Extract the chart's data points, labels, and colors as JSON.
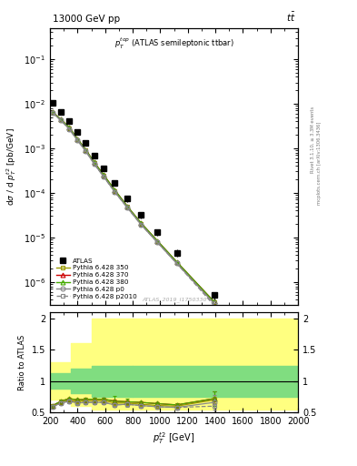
{
  "title_left": "13000 GeV pp",
  "title_right": "tt",
  "subplot_label": "$p_T^{top}$ (ATLAS semileptonic ttbar)",
  "watermark": "ATLAS_2019_I1750330",
  "right_label1": "Rivet 3.1.10, ≥ 3.3M events",
  "right_label2": "mcplots.cern.ch [arXiv:1306.3436]",
  "ylabel_main": "dσ / d p$_T^{t2}$ [pb/GeV]",
  "ylabel_ratio": "Ratio to ATLAS",
  "xlabel": "$p_T^{t2}$ [GeV]",
  "atlas_x": [
    220,
    280,
    340,
    400,
    460,
    520,
    590,
    670,
    760,
    860,
    980,
    1120,
    1390
  ],
  "atlas_y": [
    0.0105,
    0.0065,
    0.004,
    0.0023,
    0.0013,
    0.00068,
    0.00035,
    0.00017,
    7.5e-05,
    3.2e-05,
    1.3e-05,
    4.5e-06,
    5e-07
  ],
  "atlas_yerr": [
    0.0015,
    0.0008,
    0.0005,
    0.0003,
    0.00018,
    9e-05,
    5e-05,
    2.5e-05,
    1.2e-05,
    5e-06,
    2e-06,
    8e-07,
    1e-07
  ],
  "py350_x": [
    220,
    280,
    340,
    400,
    460,
    520,
    590,
    670,
    760,
    860,
    980,
    1120,
    1390
  ],
  "py350_y": [
    0.0063,
    0.0043,
    0.0028,
    0.00155,
    0.00089,
    0.00047,
    0.00024,
    0.00011,
    4.9e-05,
    2e-05,
    7.9e-06,
    2.7e-06,
    3.5e-07
  ],
  "py370_x": [
    220,
    280,
    340,
    400,
    460,
    520,
    590,
    670,
    760,
    860,
    980,
    1120,
    1390
  ],
  "py370_y": [
    0.0064,
    0.0044,
    0.0029,
    0.0016,
    0.00092,
    0.000485,
    0.00025,
    0.000115,
    5e-05,
    2.1e-05,
    8.3e-06,
    2.8e-06,
    3.6e-07
  ],
  "py380_x": [
    220,
    280,
    340,
    400,
    460,
    520,
    590,
    670,
    760,
    860,
    980,
    1120,
    1390
  ],
  "py380_y": [
    0.0064,
    0.0044,
    0.0029,
    0.0016,
    0.00092,
    0.000485,
    0.00025,
    0.000115,
    5e-05,
    2.1e-05,
    8.3e-06,
    2.8e-06,
    3.6e-07
  ],
  "pyp0_x": [
    220,
    280,
    340,
    400,
    460,
    520,
    590,
    670,
    760,
    860,
    980,
    1120,
    1390
  ],
  "pyp0_y": [
    0.0062,
    0.0042,
    0.0027,
    0.0015,
    0.00086,
    0.00045,
    0.00023,
    0.000105,
    4.7e-05,
    1.95e-05,
    7.7e-06,
    2.6e-06,
    3.3e-07
  ],
  "pyp2010_x": [
    220,
    280,
    340,
    400,
    460,
    520,
    590,
    670,
    760,
    860,
    980,
    1120,
    1390
  ],
  "pyp2010_y": [
    0.0062,
    0.0042,
    0.0027,
    0.0015,
    0.00086,
    0.00045,
    0.00023,
    0.000105,
    4.7e-05,
    1.95e-05,
    7.7e-06,
    2.6e-06,
    3e-07
  ],
  "ratio_x": [
    220,
    280,
    340,
    400,
    460,
    520,
    590,
    670,
    760,
    860,
    980,
    1120,
    1390
  ],
  "ratio_py350": [
    0.6,
    0.66,
    0.7,
    0.67,
    0.69,
    0.69,
    0.69,
    0.65,
    0.65,
    0.63,
    0.61,
    0.6,
    0.7
  ],
  "ratio_py370": [
    0.61,
    0.68,
    0.72,
    0.7,
    0.71,
    0.71,
    0.71,
    0.68,
    0.67,
    0.66,
    0.64,
    0.62,
    0.72
  ],
  "ratio_py380": [
    0.61,
    0.68,
    0.72,
    0.7,
    0.71,
    0.71,
    0.71,
    0.68,
    0.67,
    0.66,
    0.64,
    0.62,
    0.72
  ],
  "ratio_pyp0": [
    0.59,
    0.65,
    0.68,
    0.65,
    0.66,
    0.66,
    0.66,
    0.62,
    0.63,
    0.61,
    0.59,
    0.58,
    0.66
  ],
  "ratio_pyp2010": [
    0.59,
    0.65,
    0.68,
    0.65,
    0.66,
    0.66,
    0.66,
    0.62,
    0.63,
    0.61,
    0.59,
    0.58,
    0.6
  ],
  "ratio_err_py350": [
    0.02,
    0.02,
    0.02,
    0.02,
    0.02,
    0.02,
    0.02,
    0.02,
    0.02,
    0.02,
    0.02,
    0.02,
    0.05
  ],
  "ratio_err_py370": [
    0.02,
    0.02,
    0.02,
    0.02,
    0.02,
    0.02,
    0.02,
    0.02,
    0.02,
    0.02,
    0.02,
    0.02,
    0.12
  ],
  "ratio_err_py380": [
    0.02,
    0.02,
    0.02,
    0.02,
    0.02,
    0.02,
    0.02,
    0.08,
    0.05,
    0.02,
    0.02,
    0.02,
    0.12
  ],
  "ratio_err_pyp0": [
    0.02,
    0.02,
    0.02,
    0.02,
    0.02,
    0.02,
    0.02,
    0.03,
    0.04,
    0.02,
    0.02,
    0.02,
    0.12
  ],
  "ratio_err_pyp2010": [
    0.02,
    0.02,
    0.02,
    0.02,
    0.02,
    0.02,
    0.02,
    0.02,
    0.02,
    0.02,
    0.02,
    0.02,
    0.1
  ],
  "band_x_edges": [
    200,
    350,
    500,
    800,
    2000
  ],
  "band_green_lo": [
    0.88,
    0.8,
    0.75,
    0.75
  ],
  "band_green_hi": [
    1.12,
    1.2,
    1.25,
    1.25
  ],
  "band_yellow_lo": [
    0.7,
    0.6,
    0.55,
    0.55
  ],
  "band_yellow_hi": [
    1.3,
    1.6,
    2.0,
    2.0
  ],
  "color_atlas": "#000000",
  "color_py350": "#999900",
  "color_py370": "#cc0000",
  "color_py380": "#44aa00",
  "color_pyp0": "#888888",
  "color_pyp2010": "#888888",
  "color_green_band": "#80dd80",
  "color_yellow_band": "#ffff80",
  "xlim": [
    200,
    2000
  ],
  "ylim_main": [
    3e-07,
    0.5
  ],
  "ylim_ratio": [
    0.5,
    2.1
  ],
  "fig_width": 3.93,
  "fig_height": 5.12
}
